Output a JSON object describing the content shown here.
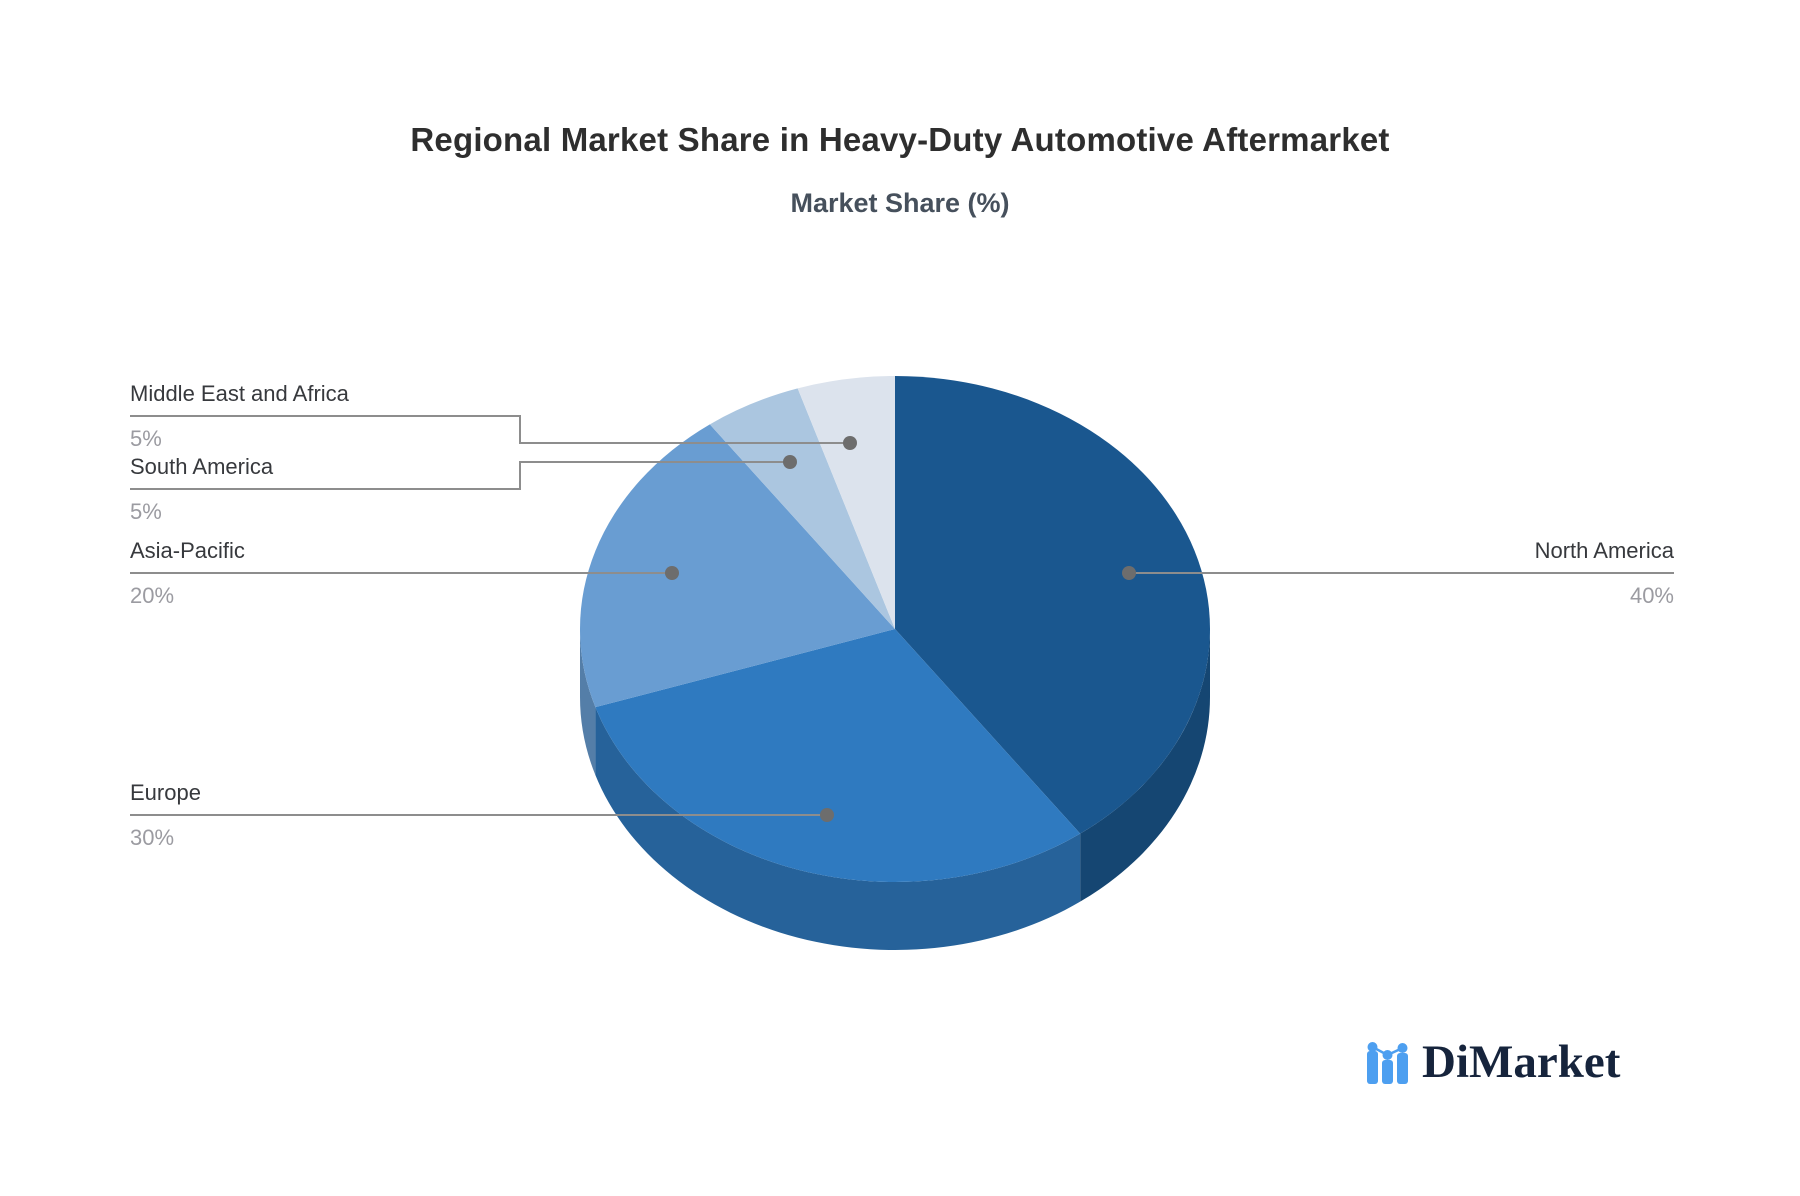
{
  "title": "Regional Market Share in Heavy-Duty Automotive Aftermarket",
  "subtitle": "Market Share (%)",
  "logo": {
    "name": "DiMarket"
  },
  "chart_data": {
    "type": "pie",
    "title": "Regional Market Share in Heavy-Duty Automotive Aftermarket",
    "subtitle": "Market Share (%)",
    "unit": "%",
    "style": "3d-pie",
    "direction": "clockwise",
    "start_angle_deg": 0,
    "legend_position": "callout-labels",
    "slices": [
      {
        "label": "North America",
        "value": 40,
        "display": "40%",
        "color": "#1a578f"
      },
      {
        "label": "Europe",
        "value": 30,
        "display": "30%",
        "color": "#2f7ac0"
      },
      {
        "label": "Asia-Pacific",
        "value": 20,
        "display": "20%",
        "color": "#699dd2"
      },
      {
        "label": "South America",
        "value": 5,
        "display": "5%",
        "color": "#abc6e0"
      },
      {
        "label": "Middle East and Africa",
        "value": 5,
        "display": "5%",
        "color": "#dce3ed"
      }
    ],
    "colors": {
      "label_text": "#37393d",
      "value_text": "#9b9ba1",
      "connector": "#8d8d8d",
      "logo_blue": "#4d9ff0",
      "logo_navy": "#16243c"
    }
  }
}
